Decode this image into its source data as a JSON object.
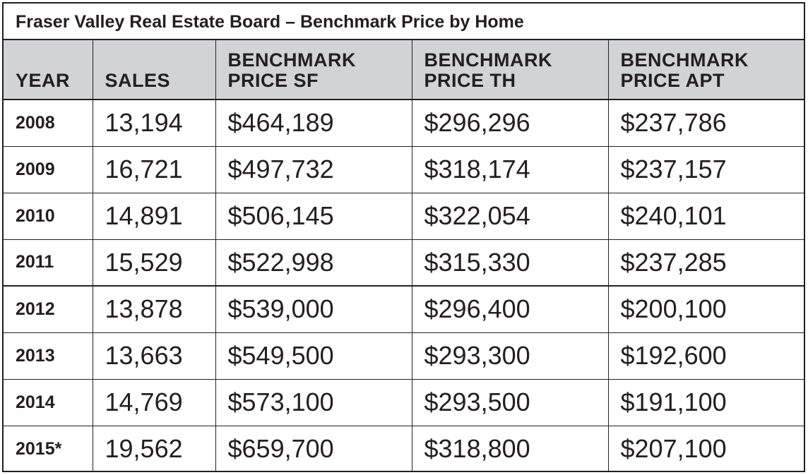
{
  "title": "Fraser Valley Real Estate Board – Benchmark Price by Home",
  "columns": [
    {
      "line1": "YEAR",
      "line2": ""
    },
    {
      "line1": "SALES",
      "line2": ""
    },
    {
      "line1": "BENCHMARK",
      "line2": "PRICE SF"
    },
    {
      "line1": "BENCHMARK",
      "line2": "PRICE TH"
    },
    {
      "line1": "BENCHMARK",
      "line2": "PRICE APT"
    }
  ],
  "rows": [
    {
      "year": "2008",
      "sales": "13,194",
      "sf": "$464,189",
      "th": "$296,296",
      "apt": "$237,786"
    },
    {
      "year": "2009",
      "sales": "16,721",
      "sf": "$497,732",
      "th": "$318,174",
      "apt": "$237,157"
    },
    {
      "year": "2010",
      "sales": "14,891",
      "sf": "$506,145",
      "th": "$322,054",
      "apt": "$240,101"
    },
    {
      "year": "2011",
      "sales": "15,529",
      "sf": "$522,998",
      "th": "$315,330",
      "apt": "$237,285"
    },
    {
      "year": "2012",
      "sales": "13,878",
      "sf": "$539,000",
      "th": "$296,400",
      "apt": "$200,100"
    },
    {
      "year": "2013",
      "sales": "13,663",
      "sf": "$549,500",
      "th": "$293,300",
      "apt": "$192,600"
    },
    {
      "year": "2014",
      "sales": "14,769",
      "sf": "$573,100",
      "th": "$293,500",
      "apt": "$191,100"
    },
    {
      "year": "2015*",
      "sales": "19,562",
      "sf": "$659,700",
      "th": "$318,800",
      "apt": "$207,100"
    }
  ],
  "colors": {
    "header_bg": "#d1d3d4",
    "text": "#231f20",
    "border": "#231f20"
  }
}
